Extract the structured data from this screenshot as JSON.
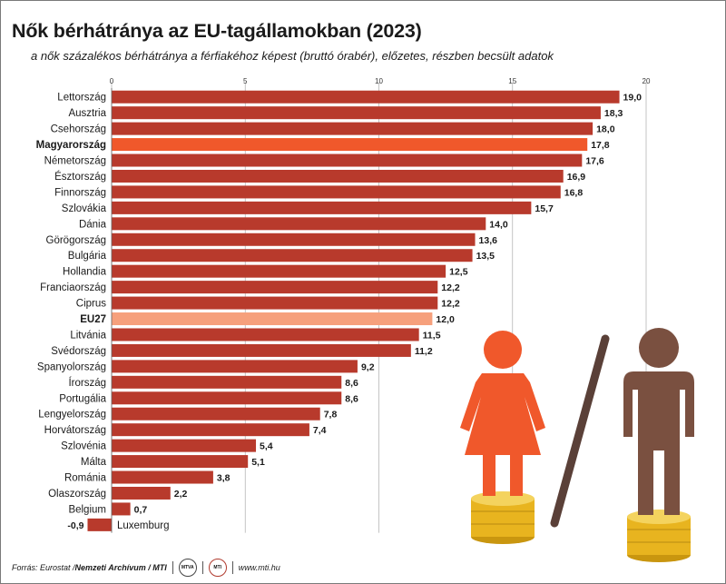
{
  "title": "Nők bérhátránya az EU-tagállamokban (2023)",
  "subtitle": "a nők százalékos bérhátránya a férfiakéhoz képest (bruttó órabér), előzetes, részben becsült adatok",
  "footer": {
    "source_prefix": "Forrás: Eurostat / ",
    "source_bold": "Nemzeti Archívum / MTI",
    "logo1": "MTVA",
    "logo2": "MTI",
    "website": "www.mti.hu"
  },
  "colors": {
    "bar": "#b83a2c",
    "highlight_hungary": "#f0582b",
    "highlight_eu": "#f6a07c",
    "grid": "#b5b5b5",
    "woman": "#f0582b",
    "man": "#7a5040",
    "coin": "#e8b41f"
  },
  "chart_data": {
    "type": "bar",
    "orientation": "horizontal",
    "xlim": [
      0,
      20
    ],
    "ticks": [
      0,
      5,
      10,
      15,
      20
    ],
    "grid": true,
    "categories": [
      "Lettország",
      "Ausztria",
      "Csehország",
      "Magyarország",
      "Németország",
      "Észtország",
      "Finnország",
      "Szlovákia",
      "Dánia",
      "Görögország",
      "Bulgária",
      "Hollandia",
      "Franciaország",
      "Ciprus",
      "EU27",
      "Litvánia",
      "Svédország",
      "Spanyolország",
      "Írország",
      "Portugália",
      "Lengyelország",
      "Horvátország",
      "Szlovénia",
      "Málta",
      "Románia",
      "Olaszország",
      "Belgium",
      "Luxemburg"
    ],
    "values": [
      19.0,
      18.3,
      18.0,
      17.8,
      17.6,
      16.9,
      16.8,
      15.7,
      14.0,
      13.6,
      13.5,
      12.5,
      12.2,
      12.2,
      12.0,
      11.5,
      11.2,
      9.2,
      8.6,
      8.6,
      7.8,
      7.4,
      5.4,
      5.1,
      3.8,
      2.2,
      0.7,
      -0.9
    ],
    "value_labels": [
      "19,0",
      "18,3",
      "18,0",
      "17,8",
      "17,6",
      "16,9",
      "16,8",
      "15,7",
      "14,0",
      "13,6",
      "13,5",
      "12,5",
      "12,2",
      "12,2",
      "12,0",
      "11,5",
      "11,2",
      "9,2",
      "8,6",
      "8,6",
      "7,8",
      "7,4",
      "5,4",
      "5,1",
      "3,8",
      "2,2",
      "0,7",
      "-0,9"
    ],
    "bold_categories": [
      "Magyarország",
      "EU27"
    ],
    "highlights": {
      "Magyarország": "hungary",
      "EU27": "eu"
    }
  }
}
